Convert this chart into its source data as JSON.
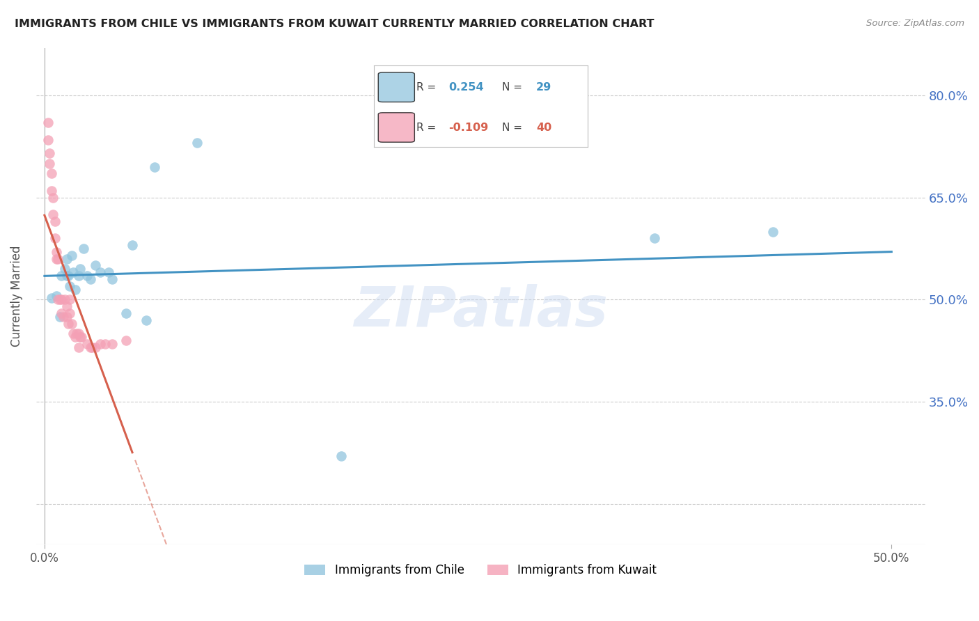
{
  "title": "IMMIGRANTS FROM CHILE VS IMMIGRANTS FROM KUWAIT CURRENTLY MARRIED CORRELATION CHART",
  "source": "Source: ZipAtlas.com",
  "ylabel": "Currently Married",
  "y_ticks": [
    0.2,
    0.35,
    0.5,
    0.65,
    0.8
  ],
  "y_tick_labels": [
    "",
    "35.0%",
    "50.0%",
    "65.0%",
    "80.0%"
  ],
  "x_ticks": [
    0.0,
    0.5
  ],
  "x_tick_labels": [
    "0.0%",
    "50.0%"
  ],
  "xlim": [
    -0.005,
    0.52
  ],
  "ylim": [
    0.14,
    0.87
  ],
  "chile_R": 0.254,
  "chile_N": 29,
  "kuwait_R": -0.109,
  "kuwait_N": 40,
  "chile_color": "#92c5de",
  "kuwait_color": "#f4a0b5",
  "chile_line_color": "#4393c3",
  "kuwait_line_color": "#d6604d",
  "chile_points_x": [
    0.004,
    0.007,
    0.009,
    0.01,
    0.012,
    0.013,
    0.013,
    0.014,
    0.015,
    0.016,
    0.017,
    0.018,
    0.02,
    0.021,
    0.023,
    0.025,
    0.027,
    0.03,
    0.033,
    0.038,
    0.04,
    0.048,
    0.052,
    0.06,
    0.065,
    0.09,
    0.175,
    0.36,
    0.43
  ],
  "chile_points_y": [
    0.502,
    0.505,
    0.475,
    0.535,
    0.545,
    0.56,
    0.535,
    0.535,
    0.52,
    0.565,
    0.54,
    0.515,
    0.535,
    0.545,
    0.575,
    0.535,
    0.53,
    0.55,
    0.54,
    0.54,
    0.53,
    0.48,
    0.58,
    0.47,
    0.695,
    0.73,
    0.27,
    0.59,
    0.6
  ],
  "kuwait_points_x": [
    0.002,
    0.002,
    0.003,
    0.003,
    0.004,
    0.004,
    0.005,
    0.005,
    0.006,
    0.006,
    0.007,
    0.007,
    0.008,
    0.008,
    0.009,
    0.01,
    0.01,
    0.011,
    0.012,
    0.013,
    0.013,
    0.014,
    0.015,
    0.015,
    0.016,
    0.017,
    0.018,
    0.019,
    0.02,
    0.02,
    0.021,
    0.022,
    0.025,
    0.027,
    0.028,
    0.03,
    0.033,
    0.036,
    0.04,
    0.048
  ],
  "kuwait_points_y": [
    0.76,
    0.735,
    0.715,
    0.7,
    0.685,
    0.66,
    0.65,
    0.625,
    0.615,
    0.59,
    0.57,
    0.56,
    0.56,
    0.5,
    0.5,
    0.5,
    0.48,
    0.475,
    0.5,
    0.49,
    0.475,
    0.465,
    0.5,
    0.48,
    0.465,
    0.45,
    0.445,
    0.45,
    0.45,
    0.43,
    0.445,
    0.445,
    0.435,
    0.43,
    0.43,
    0.43,
    0.435,
    0.435,
    0.435,
    0.44
  ],
  "watermark": "ZIPatlas",
  "background_color": "#ffffff",
  "grid_color": "#cccccc"
}
